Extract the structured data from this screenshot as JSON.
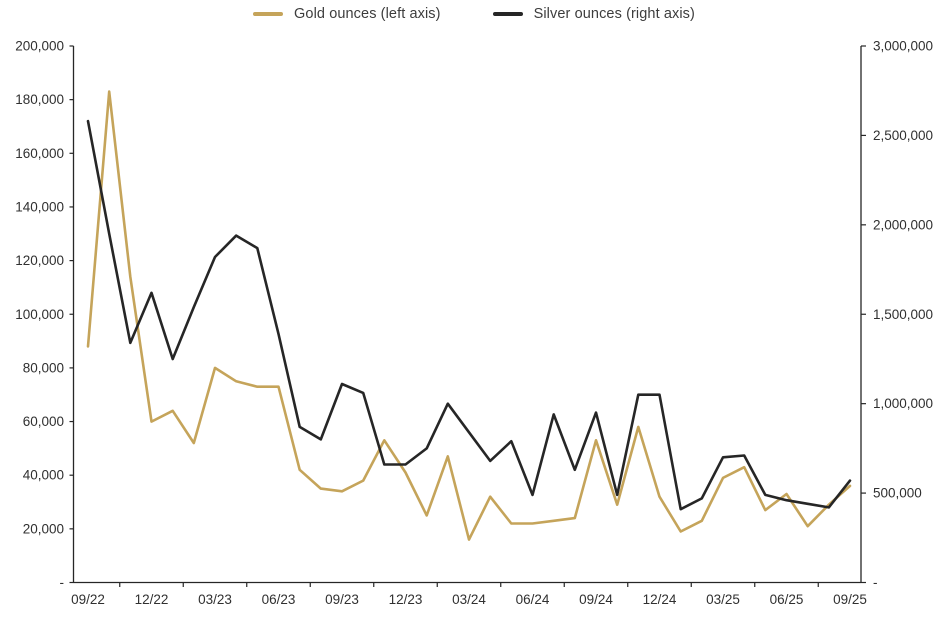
{
  "legend": {
    "items": [
      {
        "label": "Gold ounces (left axis)",
        "color": "#C5A45A"
      },
      {
        "label": "Silver ounces (right axis)",
        "color": "#262626"
      }
    ]
  },
  "chart_data": {
    "type": "line",
    "title": "",
    "grid": false,
    "legend_position": "top",
    "x": [
      "09/22",
      "10/22",
      "11/22",
      "12/22",
      "01/23",
      "02/23",
      "03/23",
      "04/23",
      "05/23",
      "06/23",
      "07/23",
      "08/23",
      "09/23",
      "10/23",
      "11/23",
      "12/23",
      "01/24",
      "02/24",
      "03/24",
      "04/24",
      "05/24",
      "06/24",
      "07/24",
      "08/24",
      "09/24",
      "10/24",
      "11/24",
      "12/24",
      "01/25",
      "02/25",
      "03/25",
      "04/25",
      "05/25",
      "06/25",
      "07/25",
      "08/25",
      "09/25"
    ],
    "x_tick_labels": [
      "09/22",
      "12/22",
      "03/23",
      "06/23",
      "09/23",
      "12/23",
      "03/24",
      "06/24",
      "09/24",
      "12/24",
      "03/25",
      "06/25",
      "09/25"
    ],
    "series": [
      {
        "name": "Gold ounces (left axis)",
        "axis": "left",
        "color": "#C5A45A",
        "values": [
          88000,
          183000,
          114000,
          60000,
          64000,
          52000,
          80000,
          75000,
          73000,
          73000,
          42000,
          35000,
          34000,
          38000,
          53000,
          41000,
          25000,
          47000,
          16000,
          32000,
          22000,
          22000,
          23000,
          24000,
          53000,
          29000,
          58000,
          32000,
          19000,
          23000,
          39000,
          43000,
          27000,
          33000,
          21000,
          29000,
          36000
        ]
      },
      {
        "name": "Silver ounces (right axis)",
        "axis": "right",
        "color": "#262626",
        "values": [
          2580000,
          1950000,
          1340000,
          1620000,
          1250000,
          1540000,
          1820000,
          1940000,
          1870000,
          1390000,
          870000,
          800000,
          1110000,
          1060000,
          660000,
          660000,
          750000,
          1000000,
          840000,
          680000,
          790000,
          490000,
          940000,
          630000,
          950000,
          490000,
          1050000,
          1050000,
          410000,
          470000,
          700000,
          710000,
          490000,
          460000,
          440000,
          420000,
          570000
        ]
      }
    ],
    "left_axis": {
      "min": 0,
      "max": 200000,
      "tick_step": 20000,
      "tick_labels": [
        "200,000",
        "180,000",
        "160,000",
        "140,000",
        "120,000",
        "100,000",
        "80,000",
        "60,000",
        "40,000",
        "20,000",
        "-"
      ]
    },
    "right_axis": {
      "min": 0,
      "max": 3000000,
      "tick_step": 500000,
      "tick_labels": [
        "3,000,000",
        "2,500,000",
        "2,000,000",
        "1,500,000",
        "1,000,000",
        "500,000",
        "-"
      ]
    }
  }
}
